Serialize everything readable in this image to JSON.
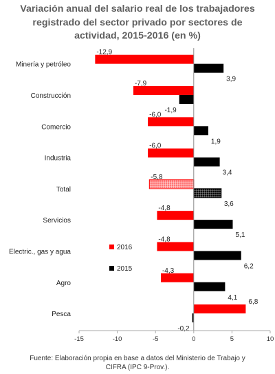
{
  "title_lines": [
    "Variación anual del salario real de los trabajadores",
    "registrado del sector privado por sectores de",
    "actividad, 2015-2016 (en %)"
  ],
  "footer_lines": [
    "Fuente: Elaboración propia en base a datos del Ministerio de Trabajo y",
    "CIFRA (IPC 9-Prov.)."
  ],
  "colors": {
    "s2016": "#ff0000",
    "s2015": "#000000"
  },
  "chart_data": {
    "type": "bar",
    "orientation": "horizontal",
    "title": "Variación anual del salario real de los trabajadores registrado del sector privado por sectores de actividad, 2015-2016 (en %)",
    "categories": [
      "Minería y petróleo",
      "Construcción",
      "Comercio",
      "Industria",
      "Total",
      "Servicios",
      "Electric., gas y agua",
      "Agro",
      "Pesca"
    ],
    "series": [
      {
        "name": "2016",
        "color": "#ff0000",
        "values": [
          -12.9,
          -7.9,
          -6.0,
          -6.0,
          -5.8,
          -4.8,
          -4.8,
          -4.3,
          6.8
        ],
        "labels": [
          "-12,9",
          "-7,9",
          "-6,0",
          "-6,0",
          "-5,8",
          "-4,8",
          "-4,8",
          "-4,3",
          "6,8"
        ]
      },
      {
        "name": "2015",
        "color": "#000000",
        "values": [
          3.9,
          -1.9,
          1.9,
          3.4,
          3.6,
          5.1,
          6.2,
          4.1,
          -0.2
        ],
        "labels": [
          "3,9",
          "-1,9",
          "1,9",
          "3,4",
          "3,6",
          "5,1",
          "6,2",
          "4,1",
          "-0,2"
        ]
      }
    ],
    "patterned_category": "Total",
    "xlim": [
      -15,
      10
    ],
    "xticks": [
      -15,
      -10,
      -5,
      0,
      5,
      10
    ],
    "xtick_labels": [
      "-15",
      "-10",
      "-5",
      "0",
      "5",
      "10"
    ],
    "legend": {
      "entries": [
        "2016",
        "2015"
      ],
      "placement": "inside-left"
    },
    "grid": false
  }
}
